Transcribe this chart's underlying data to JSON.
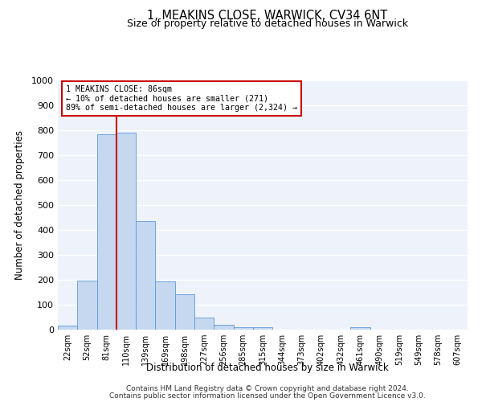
{
  "title": "1, MEAKINS CLOSE, WARWICK, CV34 6NT",
  "subtitle": "Size of property relative to detached houses in Warwick",
  "xlabel": "Distribution of detached houses by size in Warwick",
  "ylabel": "Number of detached properties",
  "bar_labels": [
    "22sqm",
    "52sqm",
    "81sqm",
    "110sqm",
    "139sqm",
    "169sqm",
    "198sqm",
    "227sqm",
    "256sqm",
    "285sqm",
    "315sqm",
    "344sqm",
    "373sqm",
    "402sqm",
    "432sqm",
    "461sqm",
    "490sqm",
    "519sqm",
    "549sqm",
    "578sqm",
    "607sqm"
  ],
  "bar_heights": [
    15,
    197,
    783,
    790,
    435,
    192,
    143,
    48,
    18,
    10,
    10,
    0,
    0,
    0,
    0,
    10,
    0,
    0,
    0,
    0,
    0
  ],
  "bar_color": "#c5d8f0",
  "bar_edge_color": "#5b9bd5",
  "property_line_x": 2.5,
  "annotation_label": "1 MEAKINS CLOSE: 86sqm",
  "annotation_line1": "← 10% of detached houses are smaller (271)",
  "annotation_line2": "89% of semi-detached houses are larger (2,324) →",
  "ylim": [
    0,
    1000
  ],
  "yticks": [
    0,
    100,
    200,
    300,
    400,
    500,
    600,
    700,
    800,
    900,
    1000
  ],
  "vline_color": "#cc0000",
  "annotation_box_color": "#cc0000",
  "background_color": "#eef2fb",
  "grid_color": "#ffffff",
  "footer_line1": "Contains HM Land Registry data © Crown copyright and database right 2024.",
  "footer_line2": "Contains public sector information licensed under the Open Government Licence v3.0."
}
